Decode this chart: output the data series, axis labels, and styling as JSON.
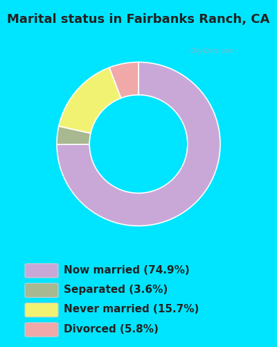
{
  "title": "Marital status in Fairbanks Ranch, CA",
  "slices": [
    74.9,
    3.6,
    15.7,
    5.8
  ],
  "labels": [
    "Now married (74.9%)",
    "Separated (3.6%)",
    "Never married (15.7%)",
    "Divorced (5.8%)"
  ],
  "colors": [
    "#c9a8d8",
    "#a8b890",
    "#f2f272",
    "#f0a8a8"
  ],
  "title_fontsize": 13,
  "legend_fontsize": 11,
  "bg_cyan": "#00e5ff",
  "bg_chart_light": "#e8f5e0",
  "watermark": "City-Data.com",
  "donut_width": 0.4,
  "title_color": "#222222"
}
